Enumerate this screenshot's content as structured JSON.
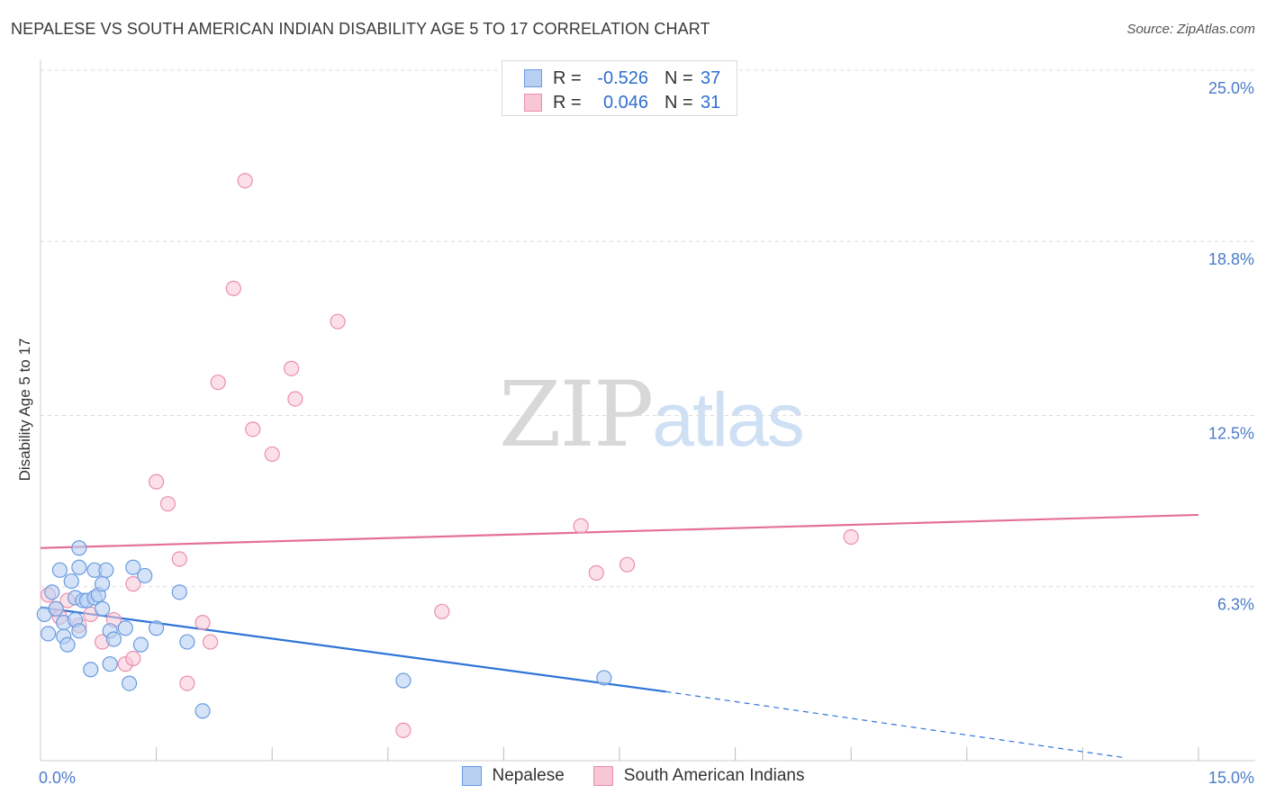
{
  "header": {
    "title": "NEPALESE VS SOUTH AMERICAN INDIAN DISABILITY AGE 5 TO 17 CORRELATION CHART",
    "source": "Source: ZipAtlas.com"
  },
  "watermark": {
    "zip": "ZIP",
    "atlas": "atlas"
  },
  "legend": {
    "nepalese": {
      "r_label": "R =",
      "r_value": "-0.526",
      "n_label": "N =",
      "n_value": "37"
    },
    "sai": {
      "r_label": "R =",
      "r_value": "0.046",
      "n_label": "N =",
      "n_value": "31"
    }
  },
  "bottom_legend": {
    "nepalese": "Nepalese",
    "sai": "South American Indians"
  },
  "colors": {
    "nepalese_fill": "#b7d0f2",
    "nepalese_stroke": "#6a9be0",
    "nepalese_line": "#2f74d8",
    "sai_fill": "#f9c6d6",
    "sai_stroke": "#ea8fad",
    "sai_line": "#e4709a",
    "tick_text": "#4a7cc9",
    "grid": "#dcdcdc"
  },
  "chart_data": {
    "type": "scatter",
    "title": "NEPALESE VS SOUTH AMERICAN INDIAN DISABILITY AGE 5 TO 17 CORRELATION CHART",
    "xlabel": "",
    "ylabel": "Disability Age 5 to 17",
    "xlim": [
      0,
      15
    ],
    "ylim": [
      0,
      25.0
    ],
    "x_tick_labels": [
      "0.0%",
      "15.0%"
    ],
    "y_ticks": [
      6.3,
      12.5,
      18.8,
      25.0
    ],
    "y_tick_labels": [
      "6.3%",
      "12.5%",
      "18.8%",
      "25.0%"
    ],
    "series": [
      {
        "name": "Nepalese",
        "R": -0.526,
        "N": 37,
        "trend": {
          "x": [
            0.0,
            8.1
          ],
          "y": [
            5.55,
            2.5
          ],
          "dashed_extension_to": [
            15.0,
            0.0
          ]
        },
        "points": [
          [
            0.05,
            5.3
          ],
          [
            0.1,
            4.6
          ],
          [
            0.15,
            6.1
          ],
          [
            0.2,
            5.5
          ],
          [
            0.3,
            5.0
          ],
          [
            0.25,
            6.9
          ],
          [
            0.3,
            4.5
          ],
          [
            0.35,
            4.2
          ],
          [
            0.4,
            6.5
          ],
          [
            0.45,
            5.9
          ],
          [
            0.5,
            7.0
          ],
          [
            0.45,
            5.1
          ],
          [
            0.5,
            4.7
          ],
          [
            0.55,
            5.8
          ],
          [
            0.5,
            7.7
          ],
          [
            0.6,
            5.8
          ],
          [
            0.65,
            3.3
          ],
          [
            0.7,
            5.9
          ],
          [
            0.7,
            6.9
          ],
          [
            0.75,
            6.0
          ],
          [
            0.8,
            5.5
          ],
          [
            0.8,
            6.4
          ],
          [
            0.9,
            4.7
          ],
          [
            0.9,
            3.5
          ],
          [
            0.95,
            4.4
          ],
          [
            1.1,
            4.8
          ],
          [
            1.15,
            2.8
          ],
          [
            1.2,
            7.0
          ],
          [
            1.3,
            4.2
          ],
          [
            1.35,
            6.7
          ],
          [
            1.5,
            4.8
          ],
          [
            1.8,
            6.1
          ],
          [
            1.9,
            4.3
          ],
          [
            2.1,
            1.8
          ],
          [
            4.7,
            2.9
          ],
          [
            7.3,
            3.0
          ],
          [
            0.85,
            6.9
          ]
        ]
      },
      {
        "name": "South American Indians",
        "R": 0.046,
        "N": 31,
        "trend": {
          "x": [
            0.0,
            15.0
          ],
          "y": [
            7.7,
            8.9
          ]
        },
        "points": [
          [
            0.1,
            6.0
          ],
          [
            0.2,
            5.5
          ],
          [
            0.25,
            5.2
          ],
          [
            0.35,
            5.8
          ],
          [
            0.5,
            4.9
          ],
          [
            0.65,
            5.3
          ],
          [
            0.8,
            4.3
          ],
          [
            0.95,
            5.1
          ],
          [
            1.1,
            3.5
          ],
          [
            1.2,
            3.7
          ],
          [
            1.2,
            6.4
          ],
          [
            1.5,
            10.1
          ],
          [
            1.65,
            9.3
          ],
          [
            1.8,
            7.3
          ],
          [
            1.9,
            2.8
          ],
          [
            2.1,
            5.0
          ],
          [
            2.2,
            4.3
          ],
          [
            2.3,
            13.7
          ],
          [
            2.5,
            17.1
          ],
          [
            2.65,
            21.0
          ],
          [
            2.75,
            12.0
          ],
          [
            3.0,
            11.1
          ],
          [
            3.25,
            14.2
          ],
          [
            3.3,
            13.1
          ],
          [
            3.85,
            15.9
          ],
          [
            4.7,
            1.1
          ],
          [
            5.2,
            5.4
          ],
          [
            7.0,
            8.5
          ],
          [
            7.2,
            6.8
          ],
          [
            7.6,
            7.1
          ],
          [
            10.5,
            8.1
          ]
        ]
      }
    ]
  }
}
